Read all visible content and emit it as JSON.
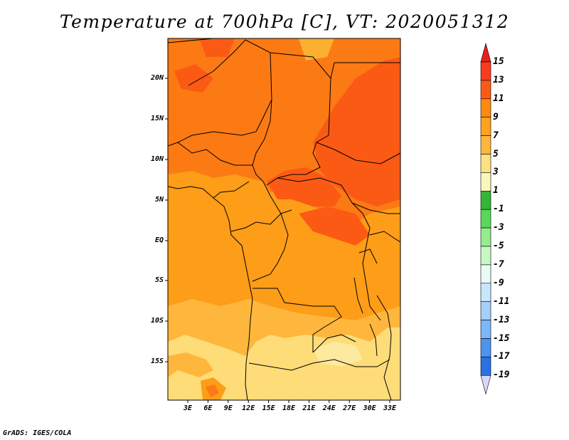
{
  "title": "Temperature at 700hPa [C], VT: 2020051312",
  "credit": "GrADS: IGES/COLA",
  "map": {
    "lat_ticks": [
      "20N",
      "15N",
      "10N",
      "5N",
      "EQ",
      "5S",
      "10S",
      "15S"
    ],
    "lon_ticks": [
      "3E",
      "6E",
      "9E",
      "12E",
      "15E",
      "18E",
      "21E",
      "24E",
      "27E",
      "30E",
      "33E"
    ]
  },
  "colorbar": {
    "labels": [
      "15",
      "13",
      "11",
      "9",
      "7",
      "5",
      "3",
      "1",
      "-1",
      "-3",
      "-5",
      "-7",
      "-9",
      "-11",
      "-13",
      "-15",
      "-17",
      "-19"
    ],
    "colors": [
      "#fa3c1e",
      "#fc5a14",
      "#fd8a0f",
      "#fda31e",
      "#feb73c",
      "#fee282",
      "#f9f8bb",
      "#33b535",
      "#59d85a",
      "#95ec8e",
      "#c7f8c0",
      "#e9fbf4",
      "#c6e7fc",
      "#a4d0fa",
      "#7eb7f8",
      "#4d93f0",
      "#2a71e4",
      "#1855d3",
      "#0d3bb8",
      "#0b2596",
      "#070f6a"
    ],
    "low_tip": "#d8d8ff",
    "high_tip": "#e8221a"
  }
}
